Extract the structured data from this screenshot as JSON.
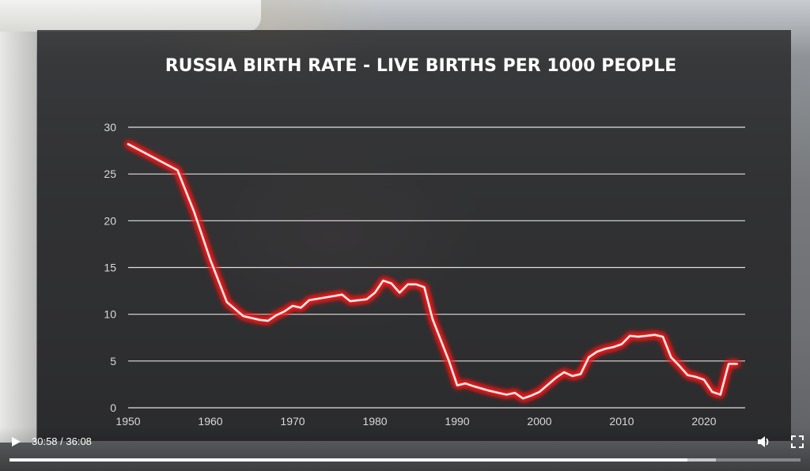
{
  "player": {
    "current_time": "30:58",
    "duration": "36:08",
    "time_text": "30:58 / 36:08",
    "progress_fraction": 0.857,
    "icons": {
      "play": "play-icon",
      "volume": "volume-icon",
      "fullscreen": "fullscreen-icon"
    }
  },
  "colors": {
    "line": "#ffe8e8",
    "glow": "#ff1a1a",
    "grid": "#ffffff",
    "text": "#ffffff",
    "tick": "#d9d9d9"
  },
  "chart_data": {
    "type": "line",
    "title": "RUSSIA BIRTH RATE - LIVE BIRTHS PER 1000 PEOPLE",
    "xlabel": "",
    "ylabel": "",
    "xlim": [
      1950,
      2025
    ],
    "ylim": [
      0,
      30
    ],
    "x_ticks": [
      1950,
      1960,
      1970,
      1980,
      1990,
      2000,
      2010,
      2020
    ],
    "y_ticks": [
      0,
      5,
      10,
      15,
      20,
      25,
      30
    ],
    "grid": "horizontal",
    "legend": "none",
    "series": [
      {
        "x": [
          1950,
          1956,
          1958,
          1960,
          1962,
          1964,
          1966,
          1967,
          1968,
          1969,
          1970,
          1971,
          1972,
          1974,
          1976,
          1977,
          1978,
          1979,
          1980,
          1981,
          1982,
          1983,
          1984,
          1985,
          1986,
          1987,
          1989,
          1990,
          1991,
          1992,
          1994,
          1996,
          1997,
          1998,
          1999,
          2000,
          2002,
          2003,
          2004,
          2005,
          2006,
          2007,
          2008,
          2009,
          2010,
          2011,
          2012,
          2013,
          2014,
          2015,
          2016,
          2017,
          2018,
          2019,
          2020,
          2021,
          2022,
          2023,
          2024
        ],
        "y": [
          28.2,
          25.4,
          21.0,
          15.8,
          11.3,
          9.8,
          9.4,
          9.3,
          9.9,
          10.3,
          10.9,
          10.7,
          11.5,
          11.8,
          12.1,
          11.4,
          11.5,
          11.6,
          12.3,
          13.6,
          13.3,
          12.3,
          13.2,
          13.2,
          12.9,
          9.5,
          5.0,
          2.4,
          2.6,
          2.3,
          1.8,
          1.4,
          1.6,
          1.0,
          1.3,
          1.7,
          3.2,
          3.8,
          3.4,
          3.6,
          5.4,
          6.0,
          6.3,
          6.5,
          6.8,
          7.7,
          7.6,
          7.7,
          7.8,
          7.6,
          5.4,
          4.5,
          3.5,
          3.3,
          3.0,
          1.7,
          1.4,
          4.7,
          4.7
        ]
      }
    ]
  }
}
